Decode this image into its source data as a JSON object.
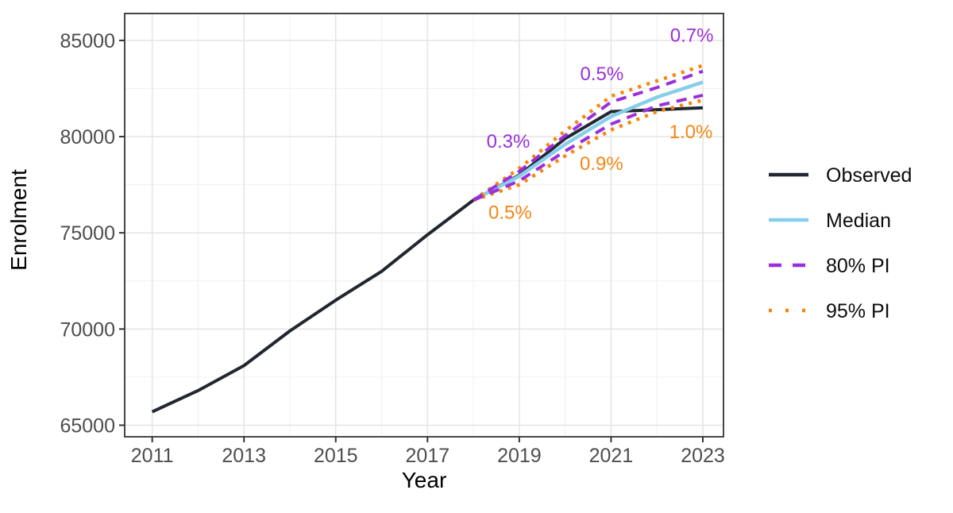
{
  "chart_data": {
    "type": "line",
    "title": "",
    "xlabel": "Year",
    "ylabel": "Enrolment",
    "xlim": [
      2010.4,
      2023.45
    ],
    "ylim": [
      64400,
      86400
    ],
    "x_ticks": [
      2011,
      2013,
      2015,
      2017,
      2019,
      2021,
      2023
    ],
    "x_minor_ticks": [
      2012,
      2014,
      2016,
      2018,
      2020,
      2022
    ],
    "y_ticks": [
      65000,
      70000,
      75000,
      80000,
      85000
    ],
    "y_minor_ticks": [
      67500,
      72500,
      77500,
      82500
    ],
    "grid": true,
    "legend_position": "right",
    "series": [
      {
        "name": "Observed",
        "color": "#22272F",
        "style": "solid",
        "x": [
          2011,
          2012,
          2013,
          2014,
          2015,
          2016,
          2017,
          2018,
          2019,
          2020,
          2021,
          2022,
          2023
        ],
        "values": [
          65700,
          66800,
          68100,
          69900,
          71500,
          73000,
          74900,
          76700,
          78000,
          79900,
          81300,
          81400,
          81500
        ]
      },
      {
        "name": "Median",
        "color": "#87CEEB",
        "style": "solid",
        "x": [
          2018,
          2019,
          2020,
          2021,
          2022,
          2023
        ],
        "values": [
          76700,
          77950,
          79600,
          81050,
          82050,
          82830
        ]
      },
      {
        "name": "80% PI",
        "color": "#9B2FDB",
        "style": "dashed",
        "x": [
          2018,
          2019,
          2020,
          2021,
          2022,
          2023
        ],
        "lower": [
          76700,
          77700,
          79250,
          80650,
          81600,
          82150
        ],
        "upper": [
          76700,
          78200,
          80050,
          81800,
          82550,
          83400
        ]
      },
      {
        "name": "95% PI",
        "color": "#F6860F",
        "style": "dotted",
        "x": [
          2018,
          2019,
          2020,
          2021,
          2022,
          2023
        ],
        "lower": [
          76700,
          77500,
          79000,
          80350,
          81300,
          81900
        ],
        "upper": [
          76700,
          78350,
          80300,
          82100,
          82900,
          83700
        ]
      }
    ],
    "annotations": [
      {
        "text": "0.3%",
        "color": "#9B2FDB",
        "x": 2018.76,
        "y": 79800
      },
      {
        "text": "0.5%",
        "color": "#9B2FDB",
        "x": 2020.8,
        "y": 83300
      },
      {
        "text": "0.7%",
        "color": "#9B2FDB",
        "x": 2022.76,
        "y": 85300
      },
      {
        "text": "0.5%",
        "color": "#F6860F",
        "x": 2018.8,
        "y": 76100
      },
      {
        "text": "0.9%",
        "color": "#F6860F",
        "x": 2020.79,
        "y": 78650
      },
      {
        "text": "1.0%",
        "color": "#F6860F",
        "x": 2022.74,
        "y": 80300
      }
    ],
    "legend": [
      {
        "label": "Observed",
        "color": "#22272F",
        "style": "solid"
      },
      {
        "label": "Median",
        "color": "#87CEEB",
        "style": "solid"
      },
      {
        "label": "80% PI",
        "color": "#9B2FDB",
        "style": "dashed"
      },
      {
        "label": "95% PI",
        "color": "#F6860F",
        "style": "dotted"
      }
    ]
  },
  "theme": {
    "tick_label_color": "#4D4D4D",
    "axis_color": "#333333",
    "grid_major_color": "#E4E4E4",
    "grid_minor_color": "#F0F0F0",
    "legend_text_color": "#0D0D0D",
    "background": "#FFFFFF"
  }
}
